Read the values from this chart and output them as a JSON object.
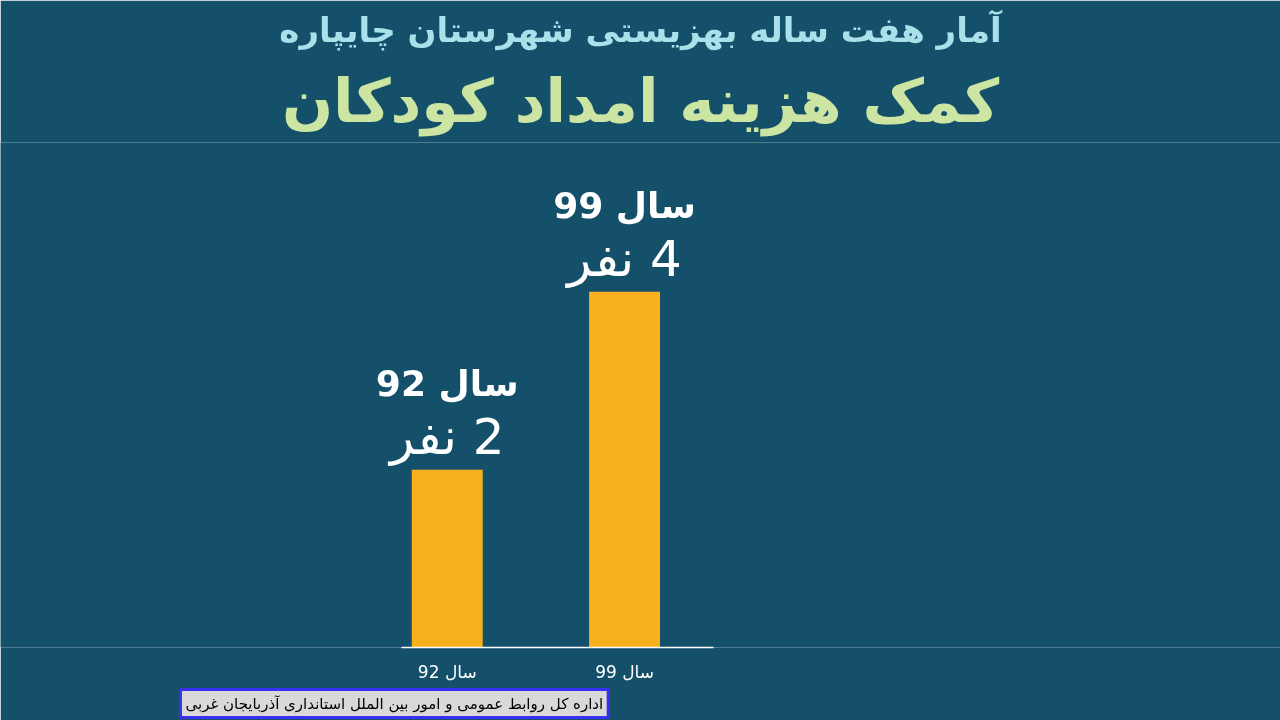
{
  "chart_data": {
    "type": "bar",
    "title": "آمار هفت ساله بهزیستی شهرستان چایپاره",
    "subtitle": "کمک هزینه امداد کودکان",
    "categories": [
      "سال 92",
      "سال 99"
    ],
    "values": [
      2,
      4
    ],
    "color": "#f9b01e",
    "value_labels": [
      "2 نفر",
      "4 نفر"
    ],
    "tick_labels": "x",
    "annotations": [
      {
        "text": "سال 92",
        "x": "سال 92",
        "y": 2
      },
      {
        "text": "سال 99",
        "x": "سال 99",
        "y": 4
      },
      "اداره کل روابط عمومی و امور بین الملل استانداری آذربایجان غربی"
    ]
  }
}
